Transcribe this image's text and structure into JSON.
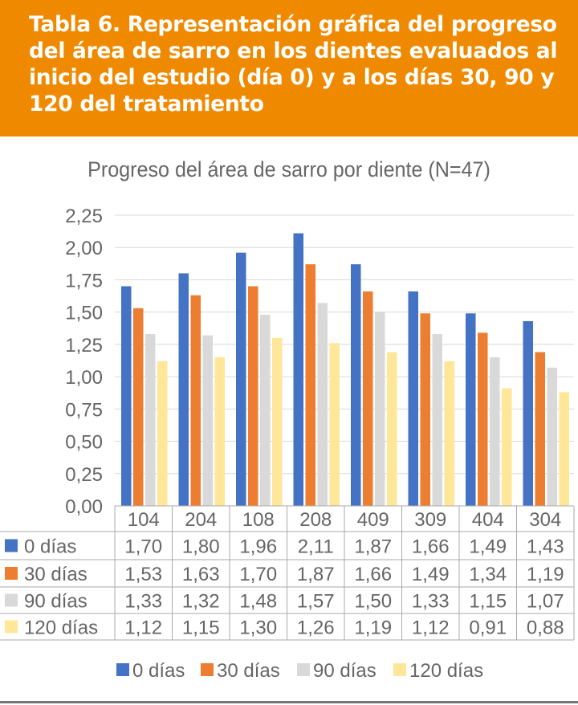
{
  "header": {
    "title": "Tabla 6. Representación gráfica del progreso del área de sarro en los dientes evaluados al inicio del estudio (día 0) y a los días 30, 90 y 120 del tratamiento"
  },
  "chart_data": {
    "type": "bar",
    "title": "Progreso del área de sarro por diente (N=47)",
    "categories": [
      "104",
      "204",
      "108",
      "208",
      "409",
      "309",
      "404",
      "304"
    ],
    "ylim": [
      0,
      2.25
    ],
    "yticks": [
      "0,00",
      "0,25",
      "0,50",
      "0,75",
      "1,00",
      "1,25",
      "1,50",
      "1,75",
      "2,00",
      "2,25"
    ],
    "grid": true,
    "legend": "bottom",
    "series": [
      {
        "name": "0 días",
        "color": "#4472C4",
        "values": [
          1.7,
          1.8,
          1.96,
          2.11,
          1.87,
          1.66,
          1.49,
          1.43
        ],
        "labels": [
          "1,70",
          "1,80",
          "1,96",
          "2,11",
          "1,87",
          "1,66",
          "1,49",
          "1,43"
        ]
      },
      {
        "name": "30 días",
        "color": "#ED7D31",
        "values": [
          1.53,
          1.63,
          1.7,
          1.87,
          1.66,
          1.49,
          1.34,
          1.19
        ],
        "labels": [
          "1,53",
          "1,63",
          "1,70",
          "1,87",
          "1,66",
          "1,49",
          "1,34",
          "1,19"
        ]
      },
      {
        "name": "90 días",
        "color": "#D9D9D9",
        "values": [
          1.33,
          1.32,
          1.48,
          1.57,
          1.5,
          1.33,
          1.15,
          1.07
        ],
        "labels": [
          "1,33",
          "1,32",
          "1,48",
          "1,57",
          "1,50",
          "1,33",
          "1,15",
          "1,07"
        ]
      },
      {
        "name": "120 días",
        "color": "#FFE699",
        "values": [
          1.12,
          1.15,
          1.3,
          1.26,
          1.19,
          1.12,
          0.91,
          0.88
        ],
        "labels": [
          "1,12",
          "1,15",
          "1,30",
          "1,26",
          "1,19",
          "1,12",
          "0,91",
          "0,88"
        ]
      }
    ]
  }
}
